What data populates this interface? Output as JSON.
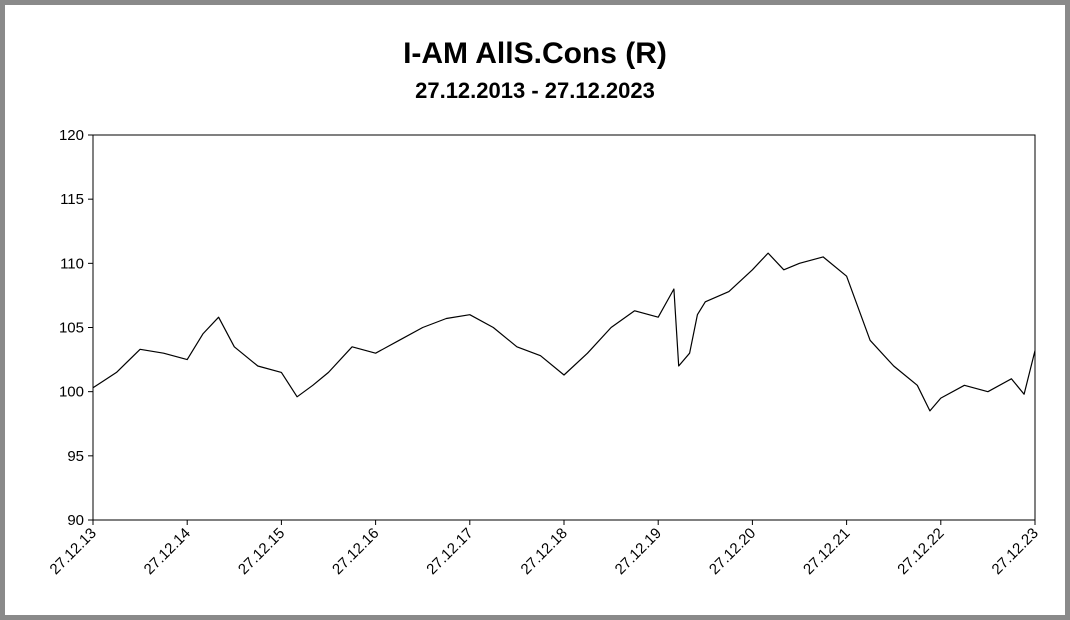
{
  "chart_data": {
    "type": "line",
    "title": "I-AM AllS.Cons (R)",
    "subtitle": "27.12.2013 - 27.12.2023",
    "color": "#000000",
    "x": [
      "27.12.13",
      "27.03.14",
      "27.06.14",
      "27.09.14",
      "27.12.14",
      "27.02.15",
      "27.04.15",
      "27.06.15",
      "27.09.15",
      "27.12.15",
      "27.02.16",
      "27.04.16",
      "27.06.16",
      "27.09.16",
      "27.12.16",
      "27.03.17",
      "27.06.17",
      "27.09.17",
      "27.12.17",
      "27.03.18",
      "27.06.18",
      "27.09.18",
      "27.12.18",
      "27.03.19",
      "27.06.19",
      "27.09.19",
      "27.12.19",
      "27.02.20",
      "15.03.20",
      "27.04.20",
      "27.05.20",
      "27.06.20",
      "27.09.20",
      "27.12.20",
      "27.02.21",
      "27.04.21",
      "27.06.21",
      "27.09.21",
      "27.12.21",
      "27.03.22",
      "27.06.22",
      "27.09.22",
      "15.11.22",
      "27.12.22",
      "27.03.23",
      "27.06.23",
      "27.09.23",
      "15.11.23",
      "27.12.23"
    ],
    "values": [
      100.3,
      101.5,
      103.3,
      103.0,
      102.5,
      104.5,
      105.8,
      103.5,
      102.0,
      101.5,
      99.6,
      100.5,
      101.5,
      103.5,
      103.0,
      104.0,
      105.0,
      105.7,
      106.0,
      105.0,
      103.5,
      102.8,
      101.3,
      103.0,
      105.0,
      106.3,
      105.8,
      108.0,
      102.0,
      103.0,
      106.0,
      107.0,
      107.8,
      109.5,
      110.8,
      109.5,
      110.0,
      110.5,
      109.0,
      104.0,
      102.0,
      100.5,
      98.5,
      99.5,
      100.5,
      100.0,
      101.0,
      99.8,
      103.2
    ],
    "xlim": [
      "27.12.13",
      "27.12.23"
    ],
    "xticks": [
      "27.12.13",
      "27.12.14",
      "27.12.15",
      "27.12.16",
      "27.12.17",
      "27.12.18",
      "27.12.19",
      "27.12.20",
      "27.12.21",
      "27.12.22",
      "27.12.23"
    ],
    "ylim": [
      90,
      120
    ],
    "yticks": [
      90,
      95,
      100,
      105,
      110,
      115,
      120
    ]
  }
}
